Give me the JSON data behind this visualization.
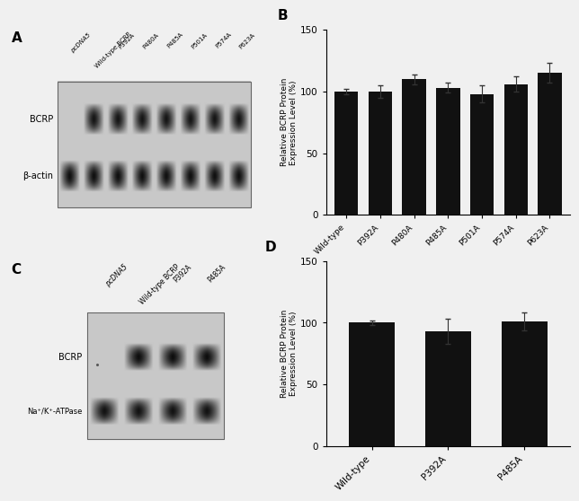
{
  "panel_B": {
    "categories": [
      "Wild-type",
      "P392A",
      "P480A",
      "P485A",
      "P501A",
      "P574A",
      "P623A"
    ],
    "values": [
      100,
      100,
      110,
      103,
      98,
      106,
      115
    ],
    "errors": [
      2,
      5,
      4,
      4,
      7,
      6,
      8
    ],
    "bar_color": "#111111",
    "ylabel": "Relative BCRP Protein\nExpression Level (%)",
    "ylim": [
      0,
      150
    ],
    "yticks": [
      0,
      50,
      100,
      150
    ],
    "label": "B"
  },
  "panel_D": {
    "categories": [
      "Wild-type",
      "P392A",
      "P485A"
    ],
    "values": [
      100,
      93,
      101
    ],
    "errors": [
      2,
      10,
      7
    ],
    "bar_color": "#111111",
    "ylabel": "Relative BCRP Protein\nExpression Level (%)",
    "ylim": [
      0,
      150
    ],
    "yticks": [
      0,
      50,
      100,
      150
    ],
    "label": "D"
  },
  "panel_A": {
    "label": "A",
    "row_labels": [
      "BCRP",
      "β-actin"
    ],
    "lane_labels": [
      "pcDNA5",
      "Wild-type BCRP",
      "P392A",
      "P480A",
      "P485A",
      "P501A",
      "P574A",
      "P623A"
    ],
    "bcrp_active_lanes": [
      1,
      2,
      3,
      4,
      5,
      6,
      7
    ],
    "actin_active_lanes": [
      0,
      1,
      2,
      3,
      4,
      5,
      6,
      7
    ]
  },
  "panel_C": {
    "label": "C",
    "row_labels": [
      "BCRP",
      "Na⁺/K⁺-ATPase"
    ],
    "lane_labels": [
      "pcDNA5",
      "Wild-type BCRP",
      "P392A",
      "P485A"
    ],
    "bcrp_active_lanes": [
      1,
      2,
      3
    ],
    "natk_active_lanes": [
      0,
      1,
      2,
      3
    ]
  },
  "figure_bg": "#f0f0f0"
}
